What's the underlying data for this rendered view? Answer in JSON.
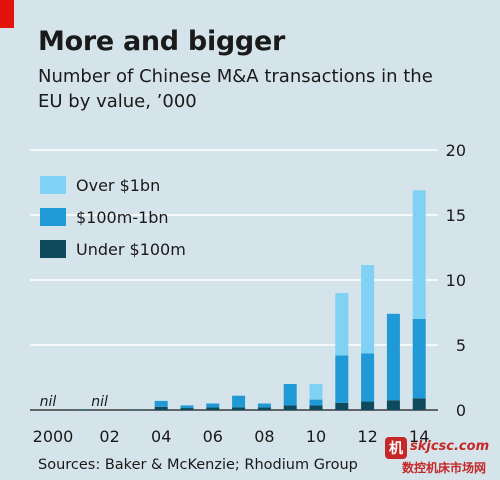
{
  "header": {
    "title": "More and bigger",
    "subtitle": "Number of Chinese M&A transactions in the EU by value, ’000"
  },
  "source": "Sources: Baker & McKenzie; Rhodium Group",
  "watermark": {
    "badge": "机",
    "url": "skjcsc.com",
    "cn": "数控机床市场网"
  },
  "colors": {
    "background": "#d5e3ea",
    "accent_red": "#e3120b",
    "over_1bn": "#7fd2f3",
    "mid": "#1f9ad6",
    "under_100m": "#0d4a5e",
    "grid": "#ffffff"
  },
  "chart_data": {
    "type": "bar",
    "stacked": true,
    "title": "More and bigger",
    "subtitle": "Number of Chinese M&A transactions in the EU by value, ’000",
    "categories": [
      "2000",
      "01",
      "02",
      "03",
      "04",
      "05",
      "06",
      "07",
      "08",
      "09",
      "10",
      "11",
      "12",
      "13",
      "14"
    ],
    "x_tick_labels": [
      "2000",
      "",
      "02",
      "",
      "04",
      "",
      "06",
      "",
      "08",
      "",
      "10",
      "",
      "12",
      "",
      "14"
    ],
    "series": [
      {
        "name": "Under $100m",
        "color": "#0d4a5e",
        "values": [
          0,
          0.05,
          0,
          0.05,
          0.25,
          0.15,
          0.2,
          0.2,
          0.2,
          0.35,
          0.35,
          0.55,
          0.65,
          0.75,
          0.9
        ]
      },
      {
        "name": "$100m-1bn",
        "color": "#1f9ad6",
        "values": [
          0,
          0,
          0,
          0,
          0.45,
          0.2,
          0.3,
          0.9,
          0.3,
          1.65,
          0.45,
          3.65,
          3.7,
          6.65,
          6.1
        ]
      },
      {
        "name": "Over $1bn",
        "color": "#7fd2f3",
        "values": [
          0,
          0,
          0,
          0,
          0,
          0,
          0,
          0,
          0,
          0,
          1.2,
          4.8,
          6.8,
          0,
          9.9
        ]
      }
    ],
    "annotations": [
      {
        "category": "2000",
        "text": "nil"
      },
      {
        "category": "02",
        "text": "nil"
      }
    ],
    "legend": {
      "placement": "top-left",
      "items": [
        {
          "label": "Over $1bn",
          "color": "#7fd2f3"
        },
        {
          "label": "$100m-1bn",
          "color": "#1f9ad6"
        },
        {
          "label": "Under $100m",
          "color": "#0d4a5e"
        }
      ]
    },
    "ylim": [
      0,
      20
    ],
    "y_ticks": [
      0,
      5,
      10,
      15,
      20
    ],
    "y_axis_side": "right",
    "grid": true
  }
}
